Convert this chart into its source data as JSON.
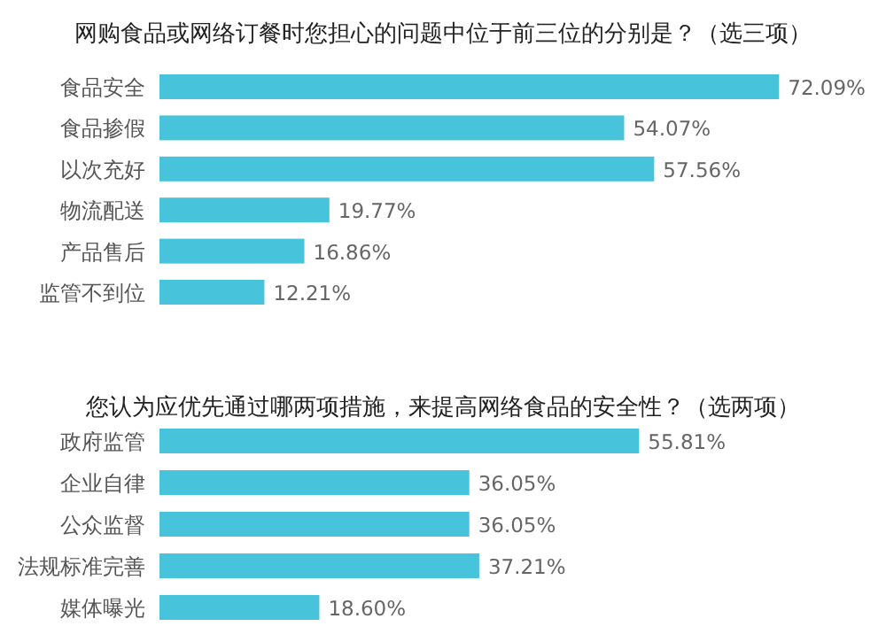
{
  "chart_data": [
    {
      "type": "bar",
      "orientation": "horizontal",
      "title": "网购食品或网络订餐时您担心的问题中位于前三位的分别是？（选三项）",
      "categories": [
        "食品安全",
        "食品掺假",
        "以次充好",
        "物流配送",
        "产品售后",
        "监管不到位"
      ],
      "values": [
        72.09,
        54.07,
        57.56,
        19.77,
        16.86,
        12.21
      ],
      "value_labels": [
        "72.09%",
        "54.07%",
        "57.56%",
        "19.77%",
        "16.86%",
        "12.21%"
      ],
      "color": "#47c3dc"
    },
    {
      "type": "bar",
      "orientation": "horizontal",
      "title": "您认为应优先通过哪两项措施，来提高网络食品的安全性？（选两项）",
      "categories": [
        "政府监管",
        "企业自律",
        "公众监督",
        "法规标准完善",
        "媒体曝光"
      ],
      "values": [
        55.81,
        36.05,
        36.05,
        37.21,
        18.6
      ],
      "value_labels": [
        "55.81%",
        "36.05%",
        "36.05%",
        "37.21%",
        "18.60%"
      ],
      "color": "#47c3dc"
    }
  ]
}
